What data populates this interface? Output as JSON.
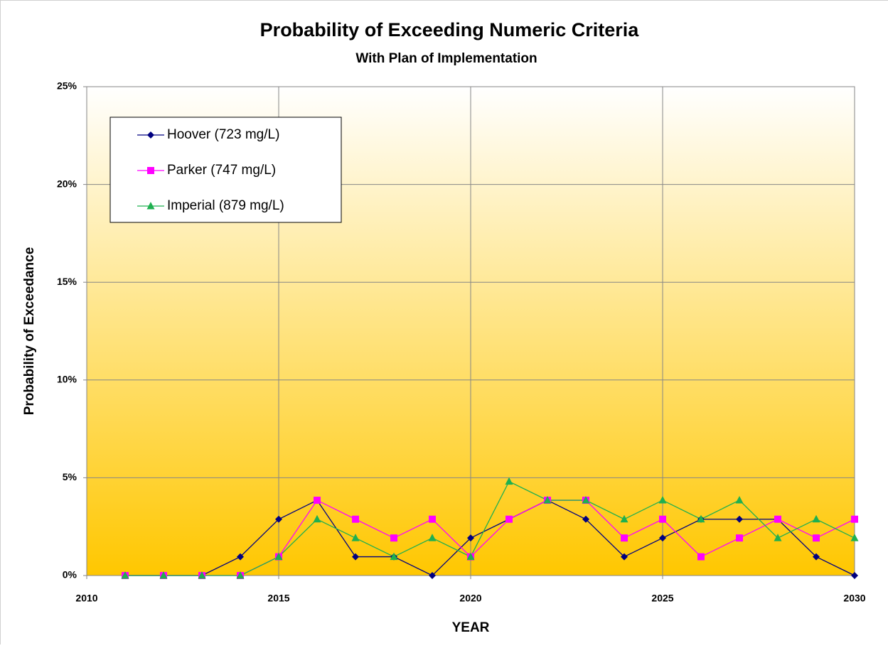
{
  "chart_data": {
    "type": "line",
    "title": "Probability of Exceeding Numeric Criteria",
    "subtitle": "With Plan of Implementation",
    "x_label": "YEAR",
    "y_label": "Probability of Exceedance",
    "x": [
      2011,
      2012,
      2013,
      2014,
      2015,
      2016,
      2017,
      2018,
      2019,
      2020,
      2021,
      2022,
      2023,
      2024,
      2025,
      2026,
      2027,
      2028,
      2029,
      2030
    ],
    "xlim": [
      2010,
      2030
    ],
    "xticks": [
      2010,
      2015,
      2020,
      2025,
      2030
    ],
    "ylim": [
      0,
      25
    ],
    "yticks": [
      {
        "value": 0,
        "label": "0%"
      },
      {
        "value": 5,
        "label": "5%"
      },
      {
        "value": 10,
        "label": "10%"
      },
      {
        "value": 15,
        "label": "15%"
      },
      {
        "value": 20,
        "label": "20%"
      },
      {
        "value": 25,
        "label": "25%"
      }
    ],
    "grid": true,
    "legend": "upper left",
    "series": [
      {
        "name": "Hoover (723 mg/L)",
        "color": "#000080",
        "marker": "diamond",
        "values": [
          0,
          0,
          0,
          0.96,
          2.88,
          3.85,
          0.96,
          0.96,
          0,
          1.92,
          2.88,
          3.85,
          2.88,
          0.96,
          1.92,
          2.88,
          2.88,
          2.88,
          0.96,
          0
        ]
      },
      {
        "name": "Parker (747 mg/L)",
        "color": "#ff00ff",
        "marker": "square",
        "values": [
          0,
          0,
          0,
          0,
          0.96,
          3.85,
          2.88,
          1.92,
          2.88,
          0.96,
          2.88,
          3.85,
          3.85,
          1.92,
          2.88,
          0.96,
          1.92,
          2.88,
          1.92,
          2.88
        ]
      },
      {
        "name": "Imperial (879 mg/L)",
        "color": "#1fb050",
        "marker": "triangle",
        "values": [
          0,
          0,
          0,
          0,
          0.96,
          2.88,
          1.92,
          0.96,
          1.92,
          0.96,
          4.81,
          3.85,
          3.85,
          2.88,
          3.85,
          2.88,
          3.85,
          1.92,
          2.88,
          1.92
        ]
      }
    ]
  }
}
